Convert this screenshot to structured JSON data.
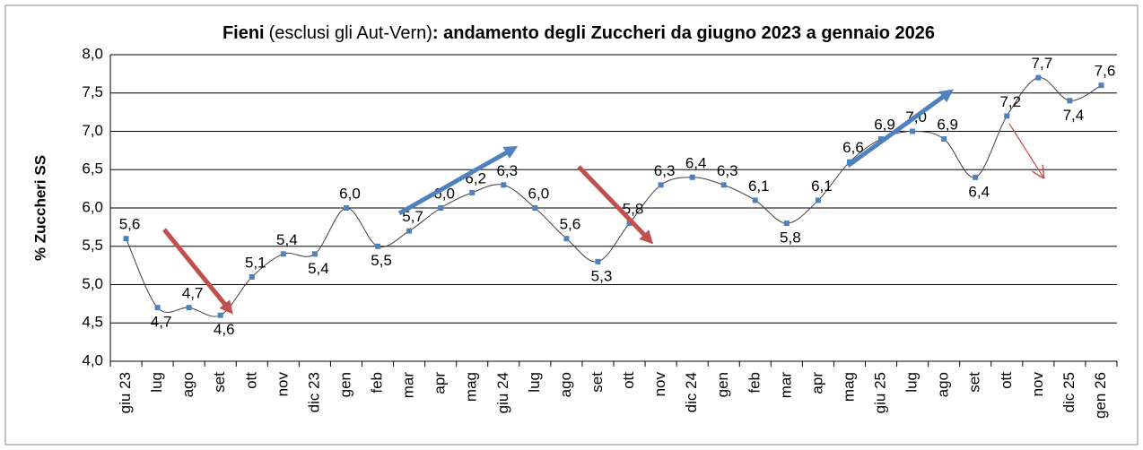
{
  "chart_data": {
    "type": "line",
    "title": [
      "Fieni",
      "(esclusi gli Aut-Vern)",
      ": andamento degli Zuccheri da giugno 2023 a gennaio 2026"
    ],
    "y_label": "% Zuccheri SS",
    "categories": [
      "giu 23",
      "lug",
      "ago",
      "set",
      "ott",
      "nov",
      "dic 23",
      "gen",
      "feb",
      "mar",
      "apr",
      "mag",
      "giu 24",
      "lug",
      "ago",
      "set",
      "ott",
      "nov",
      "dic 24",
      "gen",
      "feb",
      "mar",
      "apr",
      "mag",
      "giu 25",
      "lug",
      "ago",
      "set",
      "ott",
      "nov",
      "dic 25",
      "gen 26"
    ],
    "series": [
      {
        "color": "#4f81bd",
        "values": [
          5.6,
          4.7,
          4.7,
          4.6,
          5.1,
          5.4,
          5.4,
          6.0,
          5.5,
          5.7,
          6.0,
          6.2,
          6.3,
          6.0,
          5.6,
          5.3,
          5.8,
          6.3,
          6.4,
          6.3,
          6.1,
          5.8,
          6.1,
          6.6,
          6.9,
          7.0,
          6.9,
          6.4,
          7.2,
          7.7,
          7.4,
          7.6
        ],
        "value_labels": [
          "5,6",
          "4,7",
          "4,7",
          "4,6",
          "5,1",
          "5,4",
          "5,4",
          "6,0",
          "5,5",
          "5,7",
          "6,0",
          "6,2",
          "6,3",
          "6,0",
          "5,6",
          "5,3",
          "5,8",
          "6,3",
          "6,4",
          "6,3",
          "6,1",
          "5,8",
          "6,1",
          "6,6",
          "6,9",
          "7,0",
          "6,9",
          "6,4",
          "7,2",
          "7,7",
          "7,4",
          "7,6"
        ]
      }
    ],
    "ylim": [
      4.0,
      8.0
    ],
    "yticks": [
      {
        "value": 4.0,
        "label": "4,0"
      },
      {
        "value": 4.5,
        "label": "4,5"
      },
      {
        "value": 5.0,
        "label": "5,0"
      },
      {
        "value": 5.5,
        "label": "5,5"
      },
      {
        "value": 6.0,
        "label": "6,0"
      },
      {
        "value": 6.5,
        "label": "6,5"
      },
      {
        "value": 7.0,
        "label": "7,0"
      },
      {
        "value": 7.5,
        "label": "7,5"
      },
      {
        "value": 8.0,
        "label": "8,0"
      }
    ],
    "grid": true
  }
}
